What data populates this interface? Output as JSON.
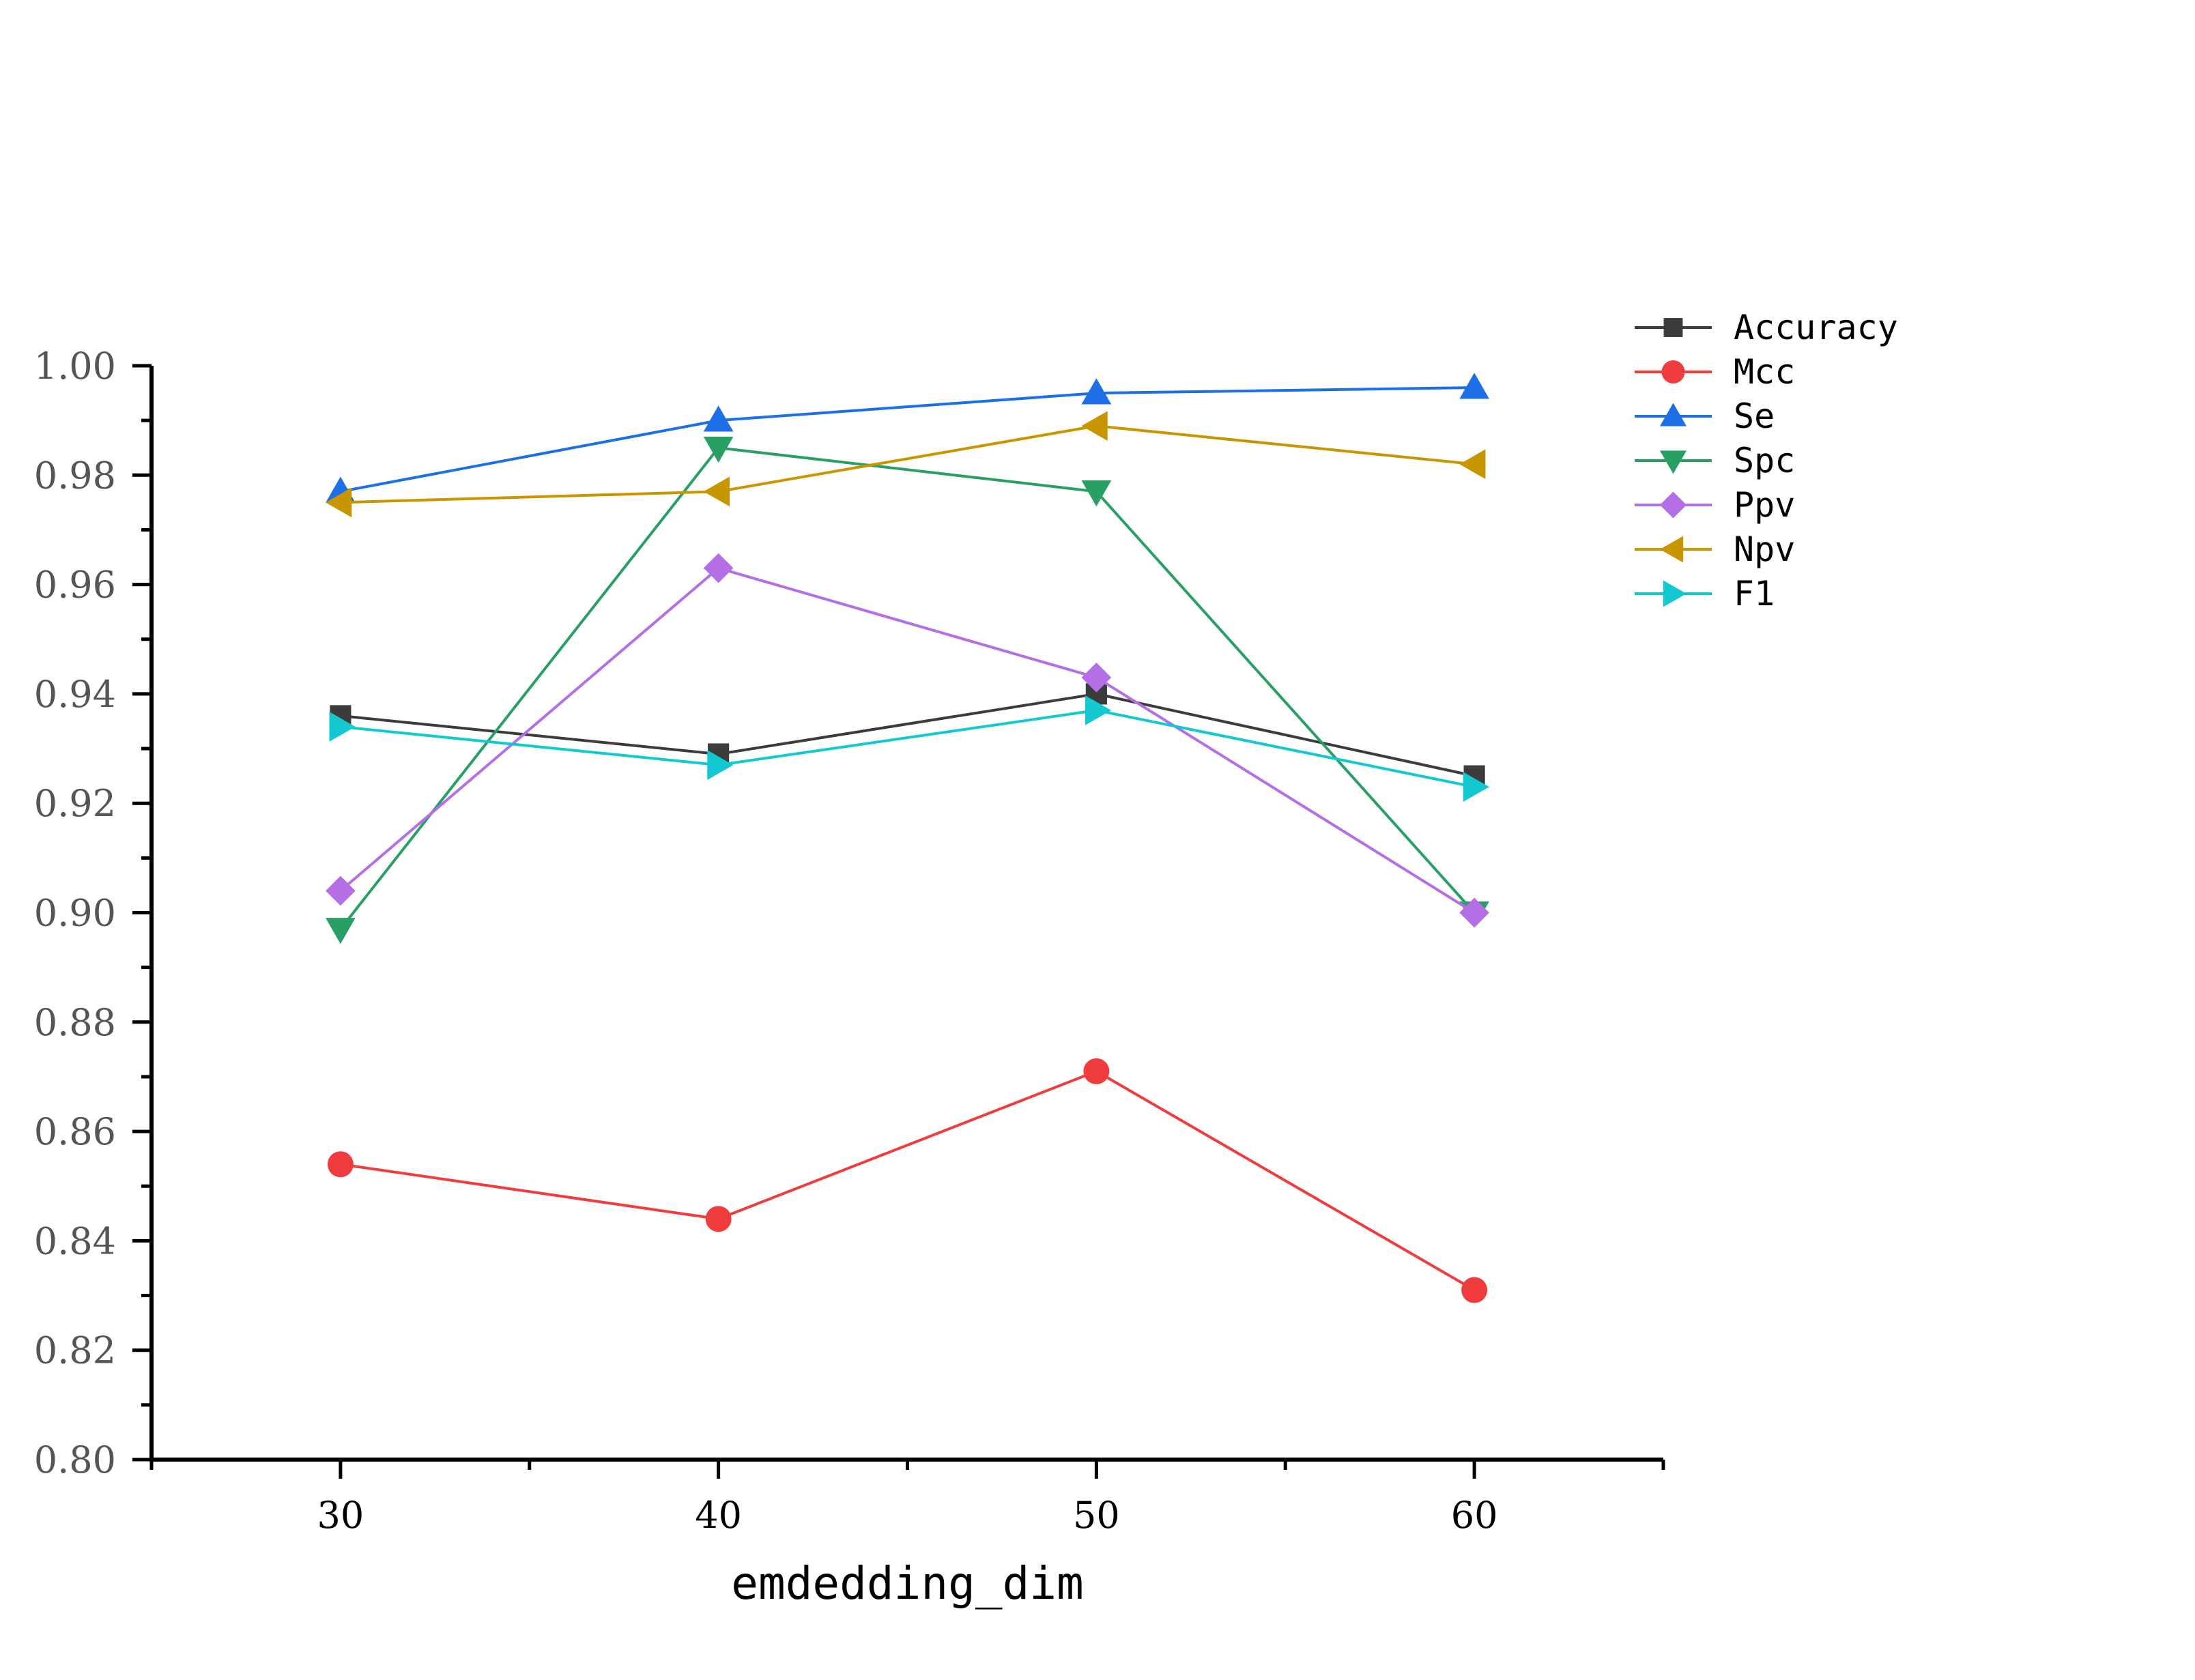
{
  "chart_data": {
    "type": "line",
    "title": "",
    "xlabel": "emdedding_dim",
    "ylabel": "",
    "x": [
      30,
      40,
      50,
      60
    ],
    "xlim": [
      25,
      65
    ],
    "ylim": [
      0.8,
      1.0
    ],
    "xticks": [
      "30",
      "40",
      "50",
      "60"
    ],
    "yticks": [
      "0.80",
      "0.82",
      "0.84",
      "0.86",
      "0.88",
      "0.90",
      "0.92",
      "0.94",
      "0.96",
      "0.98",
      "1.00"
    ],
    "grid": false,
    "legend_position": "top-right, outside plot",
    "series": [
      {
        "name": "Accuracy",
        "color": "#3c3c3c",
        "marker": "square",
        "values": [
          0.936,
          0.929,
          0.94,
          0.925
        ]
      },
      {
        "name": "Mcc",
        "color": "#f03c3c",
        "marker": "circle",
        "values": [
          0.854,
          0.844,
          0.871,
          0.831
        ]
      },
      {
        "name": "Se",
        "color": "#1e6ee6",
        "marker": "triangle-up",
        "values": [
          0.977,
          0.99,
          0.995,
          0.996
        ]
      },
      {
        "name": "Spc",
        "color": "#28a064",
        "marker": "triangle-down",
        "values": [
          0.897,
          0.985,
          0.977,
          0.9
        ]
      },
      {
        "name": "Ppv",
        "color": "#b46ee6",
        "marker": "diamond",
        "values": [
          0.904,
          0.963,
          0.943,
          0.9
        ]
      },
      {
        "name": "Npv",
        "color": "#c89600",
        "marker": "triangle-left",
        "values": [
          0.975,
          0.977,
          0.989,
          0.982
        ]
      },
      {
        "name": "F1",
        "color": "#14c8d2",
        "marker": "triangle-right",
        "values": [
          0.934,
          0.927,
          0.937,
          0.923
        ]
      }
    ]
  }
}
